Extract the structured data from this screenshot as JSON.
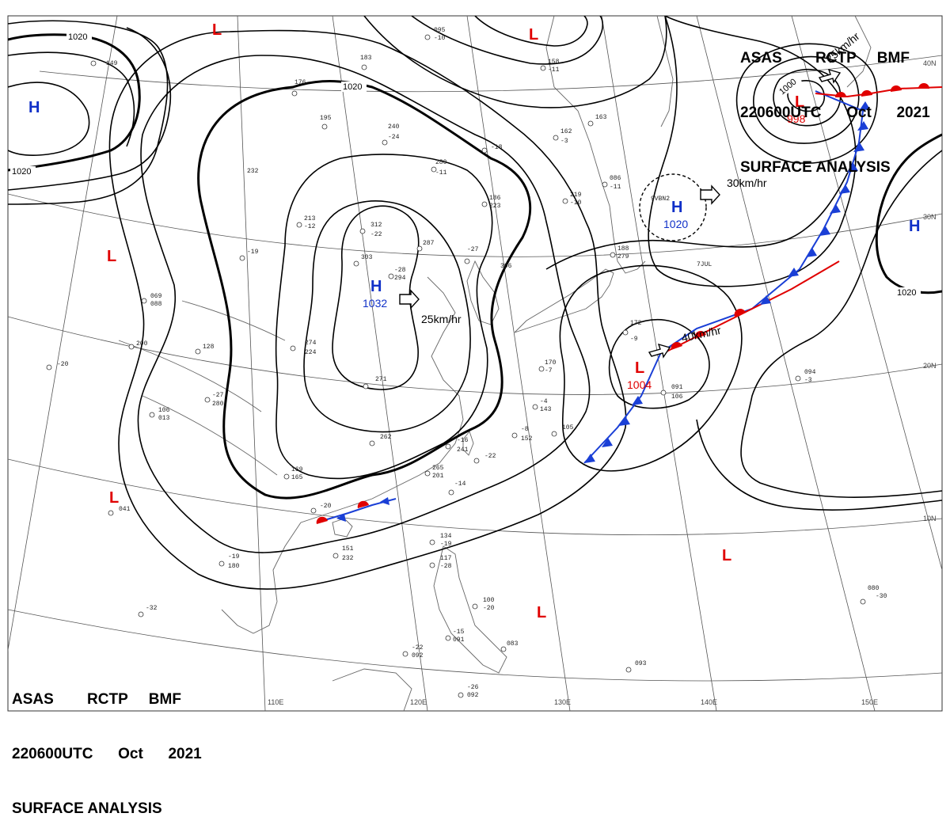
{
  "header": {
    "line1": "ASAS        RCTP     BMF",
    "line2": "220600UTC      Oct      2021",
    "line3": "SURFACE ANALYSIS"
  },
  "footer": {
    "line1": "ASAS        RCTP     BMF",
    "line2": "220600UTC      Oct      2021",
    "line3": "SURFACE ANALYSIS"
  },
  "longitude_labels": [
    "110E",
    "120E",
    "130E",
    "140E",
    "150E"
  ],
  "latitude_labels": [
    "40N",
    "30N",
    "20N",
    "10N"
  ],
  "isobar_labels": [
    "1020",
    "1020",
    "1020",
    "1020",
    "1000"
  ],
  "pressure_systems": [
    {
      "type": "H",
      "value": "1032",
      "color": "#1030c8"
    },
    {
      "type": "H",
      "value": "1020",
      "color": "#1030c8"
    },
    {
      "type": "H",
      "value": "",
      "color": "#1030c8"
    },
    {
      "type": "H",
      "value": "",
      "color": "#1030c8"
    },
    {
      "type": "L",
      "value": "1004",
      "color": "#e00000"
    },
    {
      "type": "L",
      "value": "998",
      "color": "#e00000"
    },
    {
      "type": "L",
      "value": "",
      "color": "#e00000"
    },
    {
      "type": "L",
      "value": "",
      "color": "#e00000"
    },
    {
      "type": "L",
      "value": "",
      "color": "#e00000"
    },
    {
      "type": "L",
      "value": "",
      "color": "#e00000"
    },
    {
      "type": "L",
      "value": "",
      "color": "#e00000"
    },
    {
      "type": "L",
      "value": "",
      "color": "#e00000"
    }
  ],
  "motion_labels": [
    "25km/hr",
    "30km/hr",
    "40km/hr",
    "25km/hr"
  ],
  "station_codes": [
    "9VBN2",
    "7JUL"
  ],
  "station_values": [
    "095",
    "-10",
    "183",
    "176",
    "195",
    "240",
    "-24",
    "232",
    "280",
    "-11",
    "312",
    "-22",
    "303",
    "-28",
    "294",
    "287",
    "-27",
    "306",
    "274",
    "224",
    "271",
    "-27",
    "280",
    "262",
    "-16",
    "241",
    "-22",
    "265",
    "201",
    "-14",
    "169",
    "165",
    "-20",
    "151",
    "232",
    "-19",
    "180",
    "134",
    "-19",
    "117",
    "-28",
    "100",
    "-20",
    "083",
    "-15",
    "091",
    "-22",
    "092",
    "-26",
    "092",
    "093",
    "-20",
    "080",
    "-30",
    "091",
    "106",
    "094",
    "-3",
    "105",
    "-8",
    "152",
    "-4",
    "143",
    "172",
    "-9",
    "170",
    "-7",
    "086",
    "-11",
    "162",
    "-3",
    "163",
    "158",
    "-11",
    "149",
    "041",
    "-32",
    "200",
    "128",
    "106",
    "013",
    "069",
    "088",
    "-19",
    "213",
    "-12",
    "186",
    "223",
    "-18",
    "219",
    "-10",
    "188",
    "279",
    "-10",
    "115",
    "-5"
  ],
  "colors": {
    "isobar": "#000000",
    "high": "#1030c8",
    "low": "#e00000",
    "cold_front": "#1a3fd6",
    "warm_front": "#e00000",
    "coastline": "#555555",
    "grid": "#555555"
  }
}
